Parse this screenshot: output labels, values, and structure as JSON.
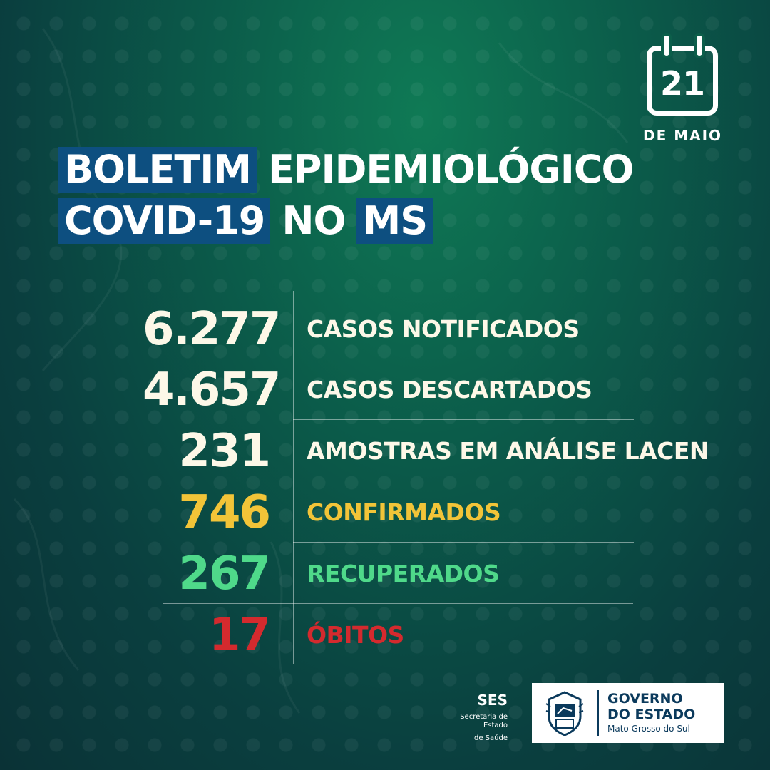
{
  "calendar": {
    "day": "21",
    "month": "DE MAIO"
  },
  "title": {
    "line1": [
      {
        "text": "BOLETIM",
        "highlight": true
      },
      {
        "text": "EPIDEMIOLÓGICO",
        "highlight": false
      }
    ],
    "line2": [
      {
        "text": "COVID-19",
        "highlight": true
      },
      {
        "text": "NO",
        "highlight": false
      },
      {
        "text": "MS",
        "highlight": true
      }
    ]
  },
  "stats": [
    {
      "value": "6.277",
      "label": "CASOS NOTIFICADOS",
      "color": "#fdf8e8"
    },
    {
      "value": "4.657",
      "label": "CASOS DESCARTADOS",
      "color": "#fdf8e8"
    },
    {
      "value": "231",
      "label": "AMOSTRAS EM ANÁLISE LACEN",
      "color": "#fdf8e8"
    },
    {
      "value": "746",
      "label": "CONFIRMADOS",
      "color": "#f2c438"
    },
    {
      "value": "267",
      "label": "RECUPERADOS",
      "color": "#4fd98a"
    },
    {
      "value": "17",
      "label": "ÓBITOS",
      "color": "#d42a2e"
    }
  ],
  "footer": {
    "ses_name": "SES",
    "ses_sub_line1": "Secretaria de Estado",
    "ses_sub_line2": "de Saúde",
    "gov_line1": "GOVERNO",
    "gov_line2": "DO ESTADO",
    "gov_line3": "Mato Grosso do Sul"
  }
}
